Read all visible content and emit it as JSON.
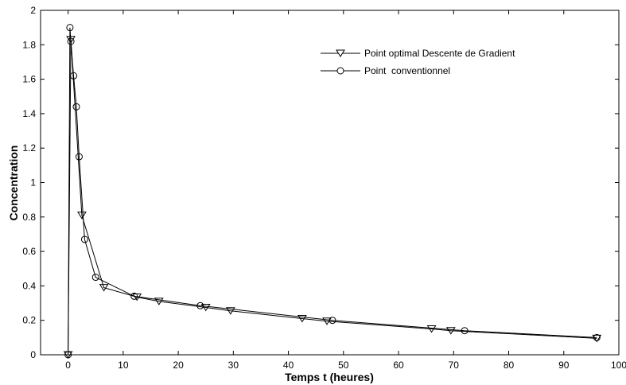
{
  "chart_data": {
    "type": "line",
    "xlabel": "Temps t (heures)",
    "ylabel": "Concentration",
    "xlim": [
      -5,
      100
    ],
    "ylim": [
      0,
      2
    ],
    "xticks": [
      0,
      10,
      20,
      30,
      40,
      50,
      60,
      70,
      80,
      90,
      100
    ],
    "yticks": [
      0,
      0.2,
      0.4,
      0.6,
      0.8,
      1,
      1.2,
      1.4,
      1.6,
      1.8,
      2
    ],
    "xtick_labels": [
      "0",
      "10",
      "20",
      "30",
      "40",
      "50",
      "60",
      "70",
      "80",
      "90",
      "100"
    ],
    "ytick_labels": [
      "0",
      "0.2",
      "0.4",
      "0.6",
      "0.8",
      "1",
      "1.2",
      "1.4",
      "1.6",
      "1.8",
      "2"
    ],
    "grid": false,
    "legend_position": "top-right",
    "series": [
      {
        "name": "Point optimal Descente de Gradient",
        "marker": "triangle-down",
        "color": "#000000",
        "x": [
          0,
          0.5,
          2.5,
          6.5,
          12.5,
          16.5,
          25,
          29.5,
          42.5,
          47,
          66,
          69.5,
          96
        ],
        "y": [
          0,
          1.83,
          0.81,
          0.39,
          0.335,
          0.31,
          0.275,
          0.255,
          0.21,
          0.195,
          0.15,
          0.14,
          0.095
        ]
      },
      {
        "name": "Point  conventionnel",
        "marker": "circle",
        "color": "#000000",
        "x": [
          0,
          0.33,
          0.5,
          1,
          1.5,
          2,
          3,
          5,
          12,
          24,
          48,
          72,
          96
        ],
        "y": [
          0,
          1.9,
          1.82,
          1.62,
          1.44,
          1.15,
          0.67,
          0.45,
          0.34,
          0.285,
          0.2,
          0.14,
          0.1
        ]
      }
    ]
  }
}
